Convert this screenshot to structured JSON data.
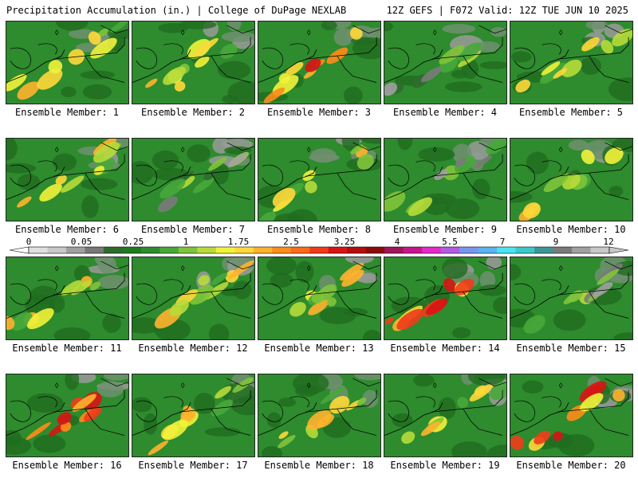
{
  "header": {
    "left_title": "Precipitation Accumulation (in.) | College of DuPage NEXLAB",
    "right_title": "12Z GEFS | F072 Valid: 12Z TUE JUN 10 2025"
  },
  "members": [
    {
      "label": "Ensemble Member: 1",
      "intensity": "moderate"
    },
    {
      "label": "Ensemble Member: 2",
      "intensity": "moderate"
    },
    {
      "label": "Ensemble Member: 3",
      "intensity": "heavy"
    },
    {
      "label": "Ensemble Member: 4",
      "intensity": "light"
    },
    {
      "label": "Ensemble Member: 5",
      "intensity": "moderate"
    },
    {
      "label": "Ensemble Member: 6",
      "intensity": "moderate"
    },
    {
      "label": "Ensemble Member: 7",
      "intensity": "light"
    },
    {
      "label": "Ensemble Member: 8",
      "intensity": "moderate"
    },
    {
      "label": "Ensemble Member: 9",
      "intensity": "light"
    },
    {
      "label": "Ensemble Member: 10",
      "intensity": "moderate"
    },
    {
      "label": "Ensemble Member: 11",
      "intensity": "moderate"
    },
    {
      "label": "Ensemble Member: 12",
      "intensity": "moderate"
    },
    {
      "label": "Ensemble Member: 13",
      "intensity": "moderate"
    },
    {
      "label": "Ensemble Member: 14",
      "intensity": "heavy"
    },
    {
      "label": "Ensemble Member: 15",
      "intensity": "light"
    },
    {
      "label": "Ensemble Member: 16",
      "intensity": "heavy"
    },
    {
      "label": "Ensemble Member: 17",
      "intensity": "moderate"
    },
    {
      "label": "Ensemble Member: 18",
      "intensity": "moderate"
    },
    {
      "label": "Ensemble Member: 19",
      "intensity": "moderate"
    },
    {
      "label": "Ensemble Member: 20",
      "intensity": "heavy"
    }
  ],
  "colorbar": {
    "tick_labels": [
      "0",
      "0.05",
      "0.25",
      "1",
      "1.75",
      "2.5",
      "3.25",
      "4",
      "5.5",
      "7",
      "9",
      "12"
    ],
    "colors": [
      "#e0e0e0",
      "#c8c8c8",
      "#a0a0a0",
      "#787878",
      "#2e6b2e",
      "#1f7a1f",
      "#2e8b2e",
      "#47a83a",
      "#7fc43a",
      "#b7dc3a",
      "#f2f23a",
      "#ffd83a",
      "#ffb22e",
      "#ff8c1a",
      "#ff6a1a",
      "#f03c1a",
      "#d81414",
      "#b40c0c",
      "#8c0a0a",
      "#a0145a",
      "#c8148c",
      "#e628c8",
      "#b45ae6",
      "#7896f0",
      "#5ab4f0",
      "#46e6f0",
      "#3cc8c8",
      "#3c9696",
      "#7a7a7a",
      "#a0a0a0",
      "#c8c8c8"
    ]
  }
}
